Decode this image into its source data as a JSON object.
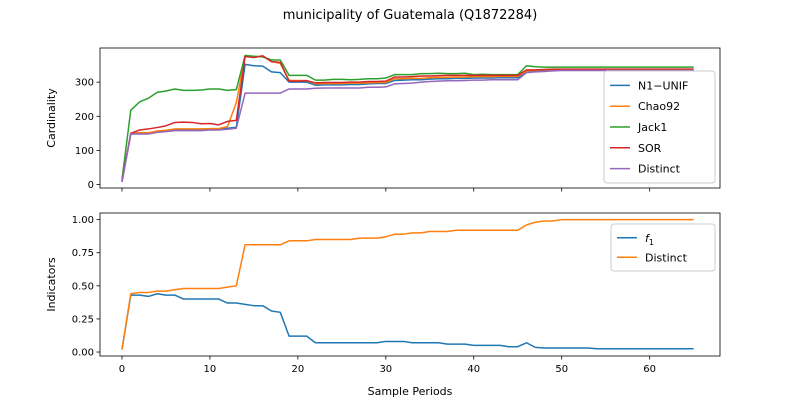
{
  "chart_data": {
    "title": "municipality of Guatemala (Q1872284)",
    "xlabel": "Sample Periods",
    "xlim": [
      -2.5,
      68
    ],
    "xticks": [
      0,
      10,
      20,
      30,
      40,
      50,
      60
    ],
    "panels": [
      {
        "type": "line",
        "ylabel": "Cardinality",
        "ylim": [
          -10,
          400
        ],
        "yticks": [
          0,
          100,
          200,
          300
        ],
        "ytick_labels": [
          "0",
          "100",
          "200",
          "300"
        ],
        "grid": false,
        "legend_position": "right",
        "series": [
          {
            "name": "N1−UNIF",
            "color": "#1f77b4",
            "x": [
              0,
              1,
              2,
              3,
              4,
              5,
              6,
              7,
              8,
              9,
              10,
              11,
              12,
              13,
              14,
              15,
              16,
              17,
              18,
              19,
              20,
              21,
              22,
              23,
              24,
              25,
              26,
              27,
              28,
              29,
              30,
              31,
              32,
              33,
              34,
              35,
              36,
              37,
              38,
              39,
              40,
              41,
              42,
              43,
              44,
              45,
              46,
              47,
              48,
              49,
              50,
              51,
              52,
              53,
              54,
              55,
              56,
              57,
              58,
              59,
              60,
              61,
              62,
              63,
              64,
              65
            ],
            "values": [
              8,
              148,
              150,
              150,
              155,
              157,
              160,
              160,
              160,
              161,
              162,
              162,
              165,
              168,
              352,
              348,
              347,
              330,
              328,
              300,
              300,
              300,
              291,
              292,
              292,
              292,
              293,
              293,
              295,
              296,
              296,
              305,
              306,
              307,
              307,
              309,
              310,
              310,
              311,
              311,
              312,
              312,
              312,
              313,
              313,
              313,
              330,
              333,
              334,
              335,
              335,
              335,
              335,
              335,
              335,
              335,
              335,
              335,
              335,
              335,
              335,
              335,
              335,
              335,
              335,
              335
            ]
          },
          {
            "name": "Chao92",
            "color": "#ff7f0e",
            "x": [
              0,
              1,
              2,
              3,
              4,
              5,
              6,
              7,
              8,
              9,
              10,
              11,
              12,
              13,
              14,
              15,
              16,
              17,
              18,
              19,
              20,
              21,
              22,
              23,
              24,
              25,
              26,
              27,
              28,
              29,
              30,
              31,
              32,
              33,
              34,
              35,
              36,
              37,
              38,
              39,
              40,
              41,
              42,
              43,
              44,
              45,
              46,
              47,
              48,
              49,
              50,
              51,
              52,
              53,
              54,
              55,
              56,
              57,
              58,
              59,
              60,
              61,
              62,
              63,
              64,
              65
            ],
            "values": [
              10,
              150,
              152,
              152,
              157,
              159,
              163,
              163,
              163,
              163,
              164,
              164,
              170,
              240,
              378,
              373,
              377,
              360,
              355,
              305,
              305,
              305,
              295,
              296,
              296,
              296,
              297,
              297,
              298,
              299,
              299,
              310,
              310,
              311,
              311,
              313,
              314,
              314,
              315,
              315,
              316,
              316,
              316,
              317,
              317,
              317,
              333,
              335,
              336,
              337,
              337,
              337,
              337,
              337,
              337,
              337,
              337,
              337,
              337,
              337,
              337,
              337,
              337,
              337,
              337,
              337
            ]
          },
          {
            "name": "Jack1",
            "color": "#2ca02c",
            "x": [
              0,
              1,
              2,
              3,
              4,
              5,
              6,
              7,
              8,
              9,
              10,
              11,
              12,
              13,
              14,
              15,
              16,
              17,
              18,
              19,
              20,
              21,
              22,
              23,
              24,
              25,
              26,
              27,
              28,
              29,
              30,
              31,
              32,
              33,
              34,
              35,
              36,
              37,
              38,
              39,
              40,
              41,
              42,
              43,
              44,
              45,
              46,
              47,
              48,
              49,
              50,
              51,
              52,
              53,
              54,
              55,
              56,
              57,
              58,
              59,
              60,
              61,
              62,
              63,
              64,
              65
            ],
            "values": [
              15,
              218,
              242,
              253,
              270,
              274,
              280,
              276,
              276,
              277,
              280,
              280,
              276,
              278,
              378,
              376,
              374,
              365,
              365,
              320,
              320,
              320,
              306,
              306,
              308,
              308,
              307,
              308,
              310,
              310,
              312,
              322,
              322,
              322,
              325,
              325,
              326,
              325,
              325,
              326,
              322,
              323,
              322,
              322,
              322,
              322,
              348,
              345,
              344,
              344,
              344,
              344,
              344,
              344,
              344,
              344,
              344,
              344,
              344,
              344,
              344,
              344,
              344,
              344,
              344,
              344
            ]
          },
          {
            "name": "SOR",
            "color": "#d62728",
            "x": [
              0,
              1,
              2,
              3,
              4,
              5,
              6,
              7,
              8,
              9,
              10,
              11,
              12,
              13,
              14,
              15,
              16,
              17,
              18,
              19,
              20,
              21,
              22,
              23,
              24,
              25,
              26,
              27,
              28,
              29,
              30,
              31,
              32,
              33,
              34,
              35,
              36,
              37,
              38,
              39,
              40,
              41,
              42,
              43,
              44,
              45,
              46,
              47,
              48,
              49,
              50,
              51,
              52,
              53,
              54,
              55,
              56,
              57,
              58,
              59,
              60,
              61,
              62,
              63,
              64,
              65
            ],
            "values": [
              10,
              150,
              160,
              163,
              167,
              172,
              182,
              183,
              182,
              178,
              179,
              175,
              185,
              188,
              375,
              372,
              377,
              360,
              358,
              303,
              303,
              304,
              298,
              299,
              299,
              299,
              300,
              300,
              302,
              302,
              303,
              315,
              315,
              316,
              318,
              318,
              319,
              320,
              320,
              320,
              320,
              320,
              320,
              320,
              320,
              320,
              336,
              336,
              337,
              338,
              338,
              338,
              338,
              338,
              338,
              338,
              338,
              338,
              338,
              338,
              338,
              338,
              338,
              338,
              338,
              338
            ]
          },
          {
            "name": "Distinct",
            "color": "#9467bd",
            "x": [
              0,
              1,
              2,
              3,
              4,
              5,
              6,
              7,
              8,
              9,
              10,
              11,
              12,
              13,
              14,
              15,
              16,
              17,
              18,
              19,
              20,
              21,
              22,
              23,
              24,
              25,
              26,
              27,
              28,
              29,
              30,
              31,
              32,
              33,
              34,
              35,
              36,
              37,
              38,
              39,
              40,
              41,
              42,
              43,
              44,
              45,
              46,
              47,
              48,
              49,
              50,
              51,
              52,
              53,
              54,
              55,
              56,
              57,
              58,
              59,
              60,
              61,
              62,
              63,
              64,
              65
            ],
            "values": [
              8,
              148,
              148,
              148,
              153,
              155,
              158,
              158,
              158,
              158,
              160,
              160,
              162,
              165,
              268,
              268,
              268,
              268,
              268,
              280,
              280,
              280,
              282,
              283,
              283,
              283,
              283,
              283,
              285,
              285,
              286,
              295,
              296,
              297,
              300,
              302,
              303,
              304,
              304,
              305,
              306,
              306,
              307,
              307,
              307,
              307,
              328,
              330,
              331,
              333,
              334,
              334,
              334,
              334,
              334,
              334,
              334,
              334,
              334,
              334,
              334,
              334,
              334,
              334,
              334,
              334
            ]
          }
        ]
      },
      {
        "type": "line",
        "ylabel": "Indicators",
        "ylim": [
          -0.03,
          1.05
        ],
        "yticks": [
          0,
          0.25,
          0.5,
          0.75,
          1.0
        ],
        "ytick_labels": [
          "0.00",
          "0.25",
          "0.50",
          "0.75",
          "1.00"
        ],
        "grid": false,
        "legend_position": "top-right",
        "series": [
          {
            "name": "f",
            "subscript": "1",
            "color": "#1f77b4",
            "x": [
              0,
              1,
              2,
              3,
              4,
              5,
              6,
              7,
              8,
              9,
              10,
              11,
              12,
              13,
              14,
              15,
              16,
              17,
              18,
              19,
              20,
              21,
              22,
              23,
              24,
              25,
              26,
              27,
              28,
              29,
              30,
              31,
              32,
              33,
              34,
              35,
              36,
              37,
              38,
              39,
              40,
              41,
              42,
              43,
              44,
              45,
              46,
              47,
              48,
              49,
              50,
              51,
              52,
              53,
              54,
              55,
              56,
              57,
              58,
              59,
              60,
              61,
              62,
              63,
              64,
              65
            ],
            "values": [
              0.02,
              0.43,
              0.43,
              0.42,
              0.44,
              0.43,
              0.43,
              0.4,
              0.4,
              0.4,
              0.4,
              0.4,
              0.37,
              0.37,
              0.36,
              0.35,
              0.35,
              0.31,
              0.3,
              0.12,
              0.12,
              0.12,
              0.07,
              0.07,
              0.07,
              0.07,
              0.07,
              0.07,
              0.07,
              0.07,
              0.08,
              0.08,
              0.08,
              0.07,
              0.07,
              0.07,
              0.07,
              0.06,
              0.06,
              0.06,
              0.05,
              0.05,
              0.05,
              0.05,
              0.04,
              0.04,
              0.07,
              0.035,
              0.03,
              0.03,
              0.03,
              0.03,
              0.03,
              0.03,
              0.025,
              0.025,
              0.025,
              0.025,
              0.025,
              0.025,
              0.025,
              0.025,
              0.025,
              0.025,
              0.025,
              0.025
            ]
          },
          {
            "name": "Distinct",
            "color": "#ff7f0e",
            "x": [
              0,
              1,
              2,
              3,
              4,
              5,
              6,
              7,
              8,
              9,
              10,
              11,
              12,
              13,
              14,
              15,
              16,
              17,
              18,
              19,
              20,
              21,
              22,
              23,
              24,
              25,
              26,
              27,
              28,
              29,
              30,
              31,
              32,
              33,
              34,
              35,
              36,
              37,
              38,
              39,
              40,
              41,
              42,
              43,
              44,
              45,
              46,
              47,
              48,
              49,
              50,
              51,
              52,
              53,
              54,
              55,
              56,
              57,
              58,
              59,
              60,
              61,
              62,
              63,
              64,
              65
            ],
            "values": [
              0.02,
              0.44,
              0.45,
              0.45,
              0.46,
              0.46,
              0.47,
              0.48,
              0.48,
              0.48,
              0.48,
              0.48,
              0.49,
              0.5,
              0.81,
              0.81,
              0.81,
              0.81,
              0.81,
              0.84,
              0.84,
              0.84,
              0.85,
              0.85,
              0.85,
              0.85,
              0.85,
              0.86,
              0.86,
              0.86,
              0.87,
              0.89,
              0.89,
              0.9,
              0.9,
              0.91,
              0.91,
              0.91,
              0.92,
              0.92,
              0.92,
              0.92,
              0.92,
              0.92,
              0.92,
              0.92,
              0.96,
              0.98,
              0.99,
              0.99,
              1.0,
              1.0,
              1.0,
              1.0,
              1.0,
              1.0,
              1.0,
              1.0,
              1.0,
              1.0,
              1.0,
              1.0,
              1.0,
              1.0,
              1.0,
              1.0
            ]
          }
        ]
      }
    ]
  }
}
